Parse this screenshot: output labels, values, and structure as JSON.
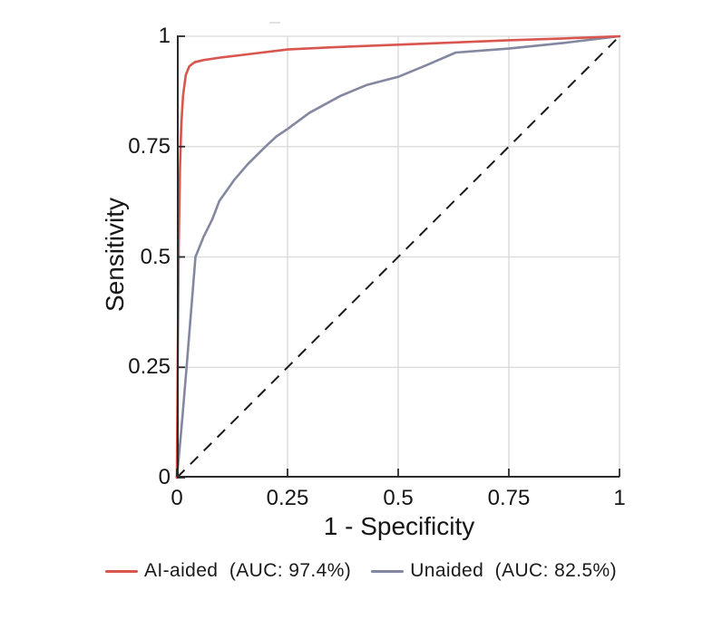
{
  "figure": {
    "background": "#ffffff"
  },
  "axes": {
    "x": {
      "label": "1 - Specificity",
      "ticks": [
        "0",
        "0.25",
        "0.5",
        "0.75",
        "1"
      ],
      "tick_values": [
        0,
        0.25,
        0.5,
        0.75,
        1
      ]
    },
    "y": {
      "label": "Sensitivity",
      "ticks": [
        "0",
        "0.25",
        "0.5",
        "0.75",
        "1"
      ],
      "tick_values": [
        0,
        0.25,
        0.5,
        0.75,
        1
      ]
    }
  },
  "legend": {
    "items": [
      {
        "label": "AI-aided  (AUC: 97.4%)",
        "color": "#d9564f"
      },
      {
        "label": "Unaided  (AUC: 82.5%)",
        "color": "#8487a0"
      }
    ]
  },
  "colors": {
    "grid": "#d9d9d9",
    "axis": "#2a2a2a",
    "chance_line": "#1a1a1a",
    "ai_aided": "#d9564f",
    "unaided": "#8487a0"
  },
  "chart_data": {
    "type": "line",
    "title": "",
    "xlabel": "1 - Specificity",
    "ylabel": "Sensitivity",
    "xlim": [
      0,
      1
    ],
    "ylim": [
      0,
      1
    ],
    "x_ticks": [
      0,
      0.25,
      0.5,
      0.75,
      1
    ],
    "y_ticks": [
      0,
      0.25,
      0.5,
      0.75,
      1
    ],
    "grid": true,
    "legend_position": "bottom-center",
    "reference_line": {
      "name": "chance",
      "style": "dashed",
      "color": "#1a1a1a",
      "from": [
        0,
        0
      ],
      "to": [
        1,
        1
      ]
    },
    "series": [
      {
        "name": "AI-aided",
        "auc": "97.4%",
        "color": "#d9564f",
        "points": [
          [
            0,
            0
          ],
          [
            0.002,
            0.28
          ],
          [
            0.004,
            0.52
          ],
          [
            0.007,
            0.7
          ],
          [
            0.01,
            0.8
          ],
          [
            0.014,
            0.865
          ],
          [
            0.02,
            0.912
          ],
          [
            0.028,
            0.932
          ],
          [
            0.04,
            0.941
          ],
          [
            0.06,
            0.946
          ],
          [
            0.1,
            0.952
          ],
          [
            0.15,
            0.958
          ],
          [
            0.25,
            0.97
          ],
          [
            0.35,
            0.975
          ],
          [
            0.5,
            0.981
          ],
          [
            0.63,
            0.986
          ],
          [
            0.75,
            0.991
          ],
          [
            0.875,
            0.995
          ],
          [
            1.0,
            1.0
          ]
        ]
      },
      {
        "name": "Unaided",
        "auc": "82.5%",
        "color": "#8487a0",
        "points": [
          [
            0,
            0
          ],
          [
            0.011,
            0.12
          ],
          [
            0.022,
            0.25
          ],
          [
            0.032,
            0.375
          ],
          [
            0.042,
            0.5
          ],
          [
            0.06,
            0.545
          ],
          [
            0.08,
            0.585
          ],
          [
            0.096,
            0.627
          ],
          [
            0.13,
            0.675
          ],
          [
            0.16,
            0.71
          ],
          [
            0.2,
            0.75
          ],
          [
            0.225,
            0.773
          ],
          [
            0.25,
            0.79
          ],
          [
            0.3,
            0.827
          ],
          [
            0.37,
            0.865
          ],
          [
            0.43,
            0.89
          ],
          [
            0.5,
            0.908
          ],
          [
            0.565,
            0.935
          ],
          [
            0.63,
            0.963
          ],
          [
            0.75,
            0.972
          ],
          [
            0.875,
            0.985
          ],
          [
            1.0,
            1.0
          ]
        ]
      }
    ]
  }
}
